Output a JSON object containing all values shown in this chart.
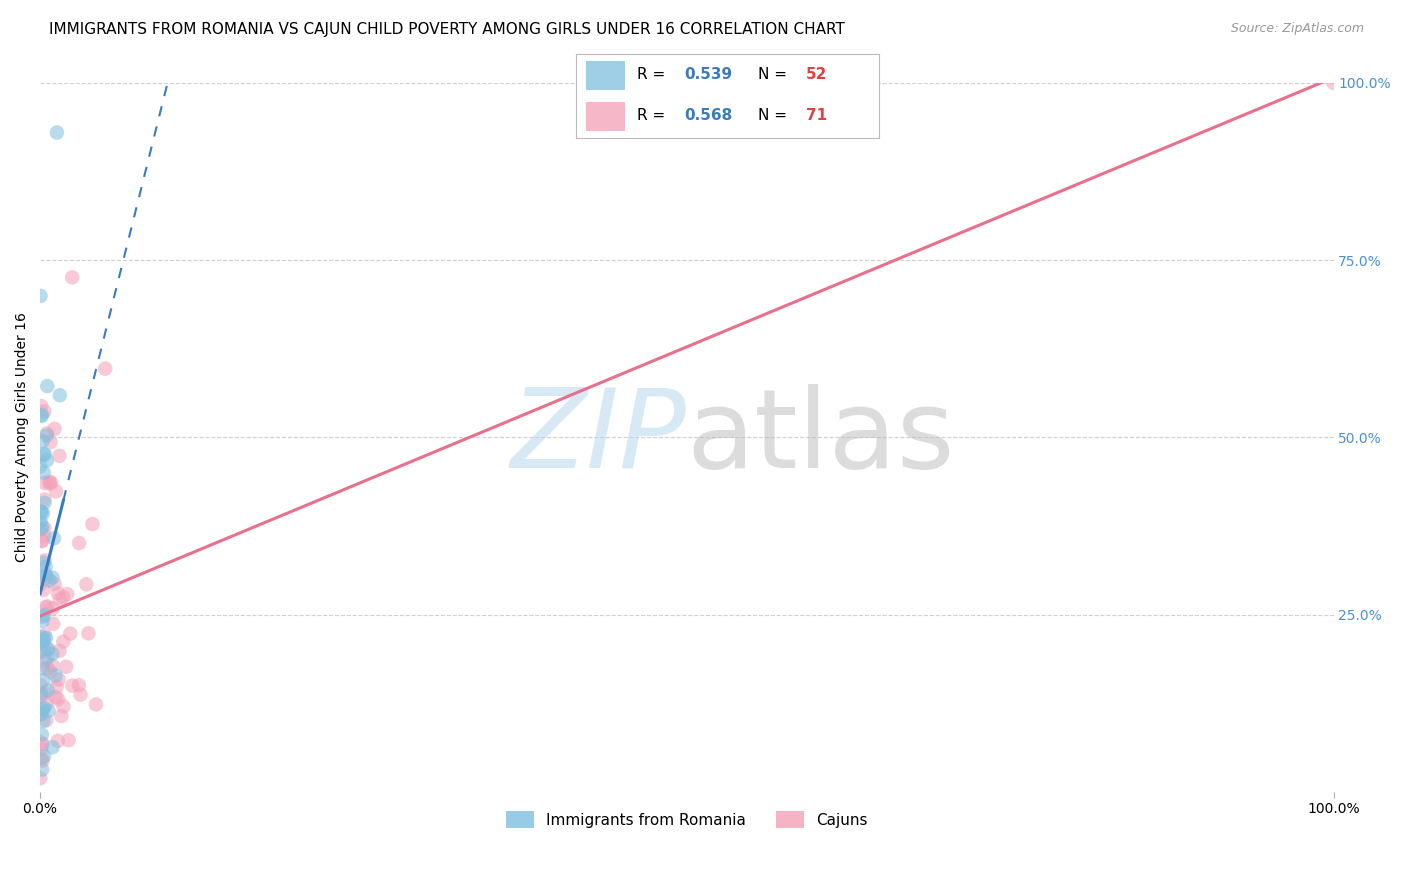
{
  "title": "IMMIGRANTS FROM ROMANIA VS CAJUN CHILD POVERTY AMONG GIRLS UNDER 16 CORRELATION CHART",
  "source": "Source: ZipAtlas.com",
  "ylabel_left": "Child Poverty Among Girls Under 16",
  "blue_dot_color": "#7fbfdf",
  "pink_dot_color": "#f4a0b8",
  "blue_line_color": "#3a7bbf",
  "pink_line_color": "#e8708a",
  "background_color": "#ffffff",
  "grid_color": "#d0d0d0",
  "R_color": "#3a7bbf",
  "N_color": "#e04040",
  "title_fontsize": 11,
  "source_fontsize": 9,
  "right_axis_color": "#4a90d9"
}
